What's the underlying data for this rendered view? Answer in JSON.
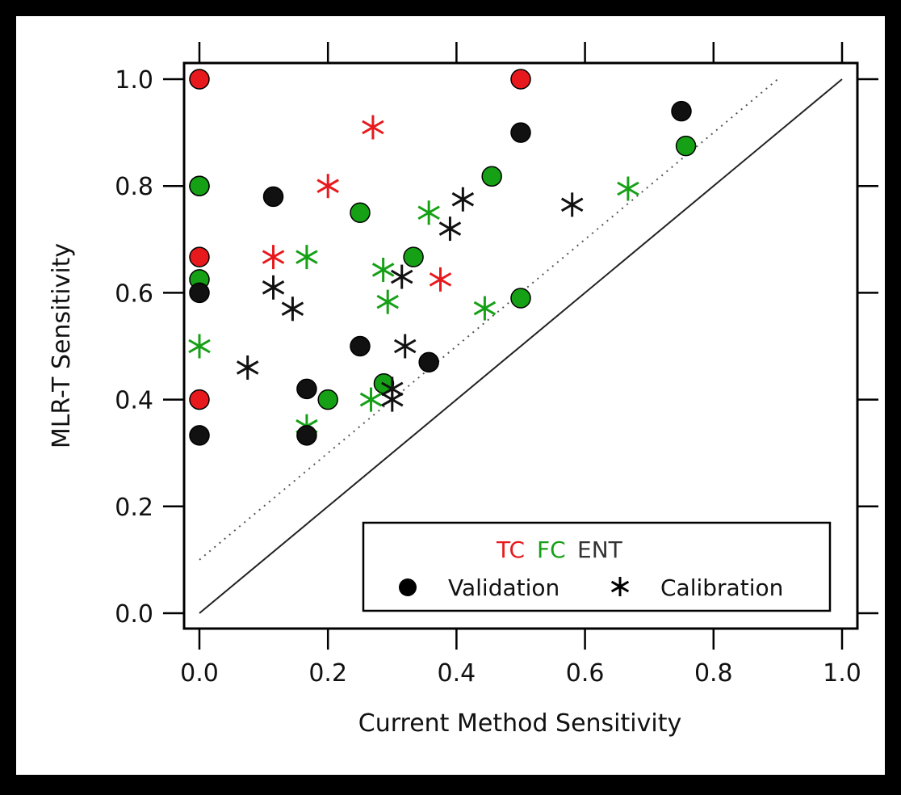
{
  "chart_data": {
    "type": "scatter",
    "xlabel": "Current Method Sensitivity",
    "ylabel": "MLR-T Sensitivity",
    "xlim": [
      0,
      1
    ],
    "ylim": [
      0,
      1
    ],
    "xticks": [
      "0.0",
      "0.2",
      "0.4",
      "0.6",
      "0.8",
      "1.0"
    ],
    "yticks": [
      "0.0",
      "0.2",
      "0.4",
      "0.6",
      "0.8",
      "1.0"
    ],
    "reference_lines": [
      {
        "style": "solid",
        "from": [
          0,
          0
        ],
        "to": [
          1,
          1
        ]
      },
      {
        "style": "dotted",
        "from": [
          0,
          0.1
        ],
        "to": [
          0.9,
          1.0
        ]
      }
    ],
    "legend": {
      "placement": "bottom-right",
      "groups": [
        {
          "label": "TC",
          "color": "#e8191c"
        },
        {
          "label": "FC",
          "color": "#16a016"
        },
        {
          "label": "ENT",
          "color": "#222222"
        }
      ],
      "markers": [
        {
          "label": "Validation",
          "marker": "circle"
        },
        {
          "label": "Calibration",
          "marker": "asterisk"
        }
      ]
    },
    "series": [
      {
        "group": "TC",
        "marker": "circle",
        "color": "#e8191c",
        "x": [
          0,
          0,
          0,
          0,
          0.5
        ],
        "y": [
          1.0,
          0.8,
          0.667,
          0.4,
          1.0
        ]
      },
      {
        "group": "TC",
        "marker": "asterisk",
        "color": "#e8191c",
        "x": [
          0.27,
          0.2,
          0.115,
          0.375
        ],
        "y": [
          0.91,
          0.8,
          0.667,
          0.625
        ]
      },
      {
        "group": "FC",
        "marker": "circle",
        "color": "#16a016",
        "x": [
          0,
          0,
          0.25,
          0.333,
          0.455,
          0.5,
          0.757,
          0.2,
          0.287
        ],
        "y": [
          0.8,
          0.625,
          0.75,
          0.667,
          0.818,
          0.59,
          0.875,
          0.4,
          0.43
        ]
      },
      {
        "group": "FC",
        "marker": "asterisk",
        "color": "#16a016",
        "x": [
          0,
          0.167,
          0.286,
          0.293,
          0.357,
          0.444,
          0.667,
          0.167,
          0.267
        ],
        "y": [
          0.5,
          0.667,
          0.643,
          0.583,
          0.75,
          0.571,
          0.795,
          0.35,
          0.4
        ]
      },
      {
        "group": "ENT",
        "marker": "circle",
        "color": "#111111",
        "x": [
          0,
          0,
          0.115,
          0.25,
          0.167,
          0.167,
          0.357,
          0.5,
          0.75
        ],
        "y": [
          0.6,
          0.333,
          0.78,
          0.5,
          0.42,
          0.333,
          0.47,
          0.9,
          0.94
        ]
      },
      {
        "group": "ENT",
        "marker": "asterisk",
        "color": "#111111",
        "x": [
          0.075,
          0.115,
          0.145,
          0.3,
          0.3,
          0.315,
          0.32,
          0.39,
          0.41,
          0.58
        ],
        "y": [
          0.46,
          0.61,
          0.57,
          0.42,
          0.4,
          0.63,
          0.5,
          0.72,
          0.775,
          0.765
        ]
      }
    ]
  }
}
